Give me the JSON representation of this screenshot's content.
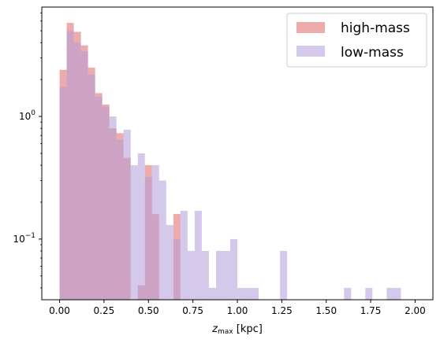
{
  "chart_data": {
    "type": "histogram",
    "title": "",
    "xlabel": "z_max [kpc]",
    "xlabel_main": "z",
    "xlabel_sub": "max",
    "xlabel_unit": " [kpc]",
    "ylabel": "",
    "yscale": "log",
    "xlim": [
      -0.1,
      2.1
    ],
    "ylim": [
      0.032,
      7.8
    ],
    "grid": false,
    "legend_position": "top-right",
    "bin_width": 0.04,
    "bin_start": 0.0,
    "x_ticks": [
      0.0,
      0.25,
      0.5,
      0.75,
      1.0,
      1.25,
      1.5,
      1.75,
      2.0
    ],
    "x_tick_labels": [
      "0.00",
      "0.25",
      "0.50",
      "0.75",
      "1.00",
      "1.25",
      "1.50",
      "1.75",
      "2.00"
    ],
    "y_ticks": [
      {
        "value": 1.0,
        "base": "10",
        "exp": "0"
      },
      {
        "value": 0.1,
        "base": "10",
        "exp": "−1"
      }
    ],
    "series": [
      {
        "name": "high-mass",
        "color": "#e06666",
        "opacity": 0.55,
        "values": [
          2.4,
          5.8,
          4.9,
          3.8,
          2.5,
          1.55,
          1.25,
          0.8,
          0.73,
          0.46,
          0,
          0.042,
          0.4,
          0.16,
          0,
          0,
          0.16
        ]
      },
      {
        "name": "low-mass",
        "color": "#b39ddb",
        "opacity": 0.55,
        "values": [
          1.75,
          5.0,
          4.0,
          3.4,
          2.2,
          1.45,
          1.2,
          1.0,
          0.65,
          0.78,
          0.4,
          0.5,
          0.32,
          0.4,
          0.3,
          0.13,
          0.1,
          0.17,
          0.08,
          0.17,
          0.08,
          0.04,
          0.08,
          0.08,
          0.1,
          0.04,
          0.04,
          0.04,
          0,
          0,
          0,
          0.08,
          0,
          0,
          0,
          0,
          0,
          0,
          0,
          0,
          0.04,
          0,
          0,
          0.04,
          0,
          0,
          0.04,
          0.04
        ]
      }
    ]
  }
}
